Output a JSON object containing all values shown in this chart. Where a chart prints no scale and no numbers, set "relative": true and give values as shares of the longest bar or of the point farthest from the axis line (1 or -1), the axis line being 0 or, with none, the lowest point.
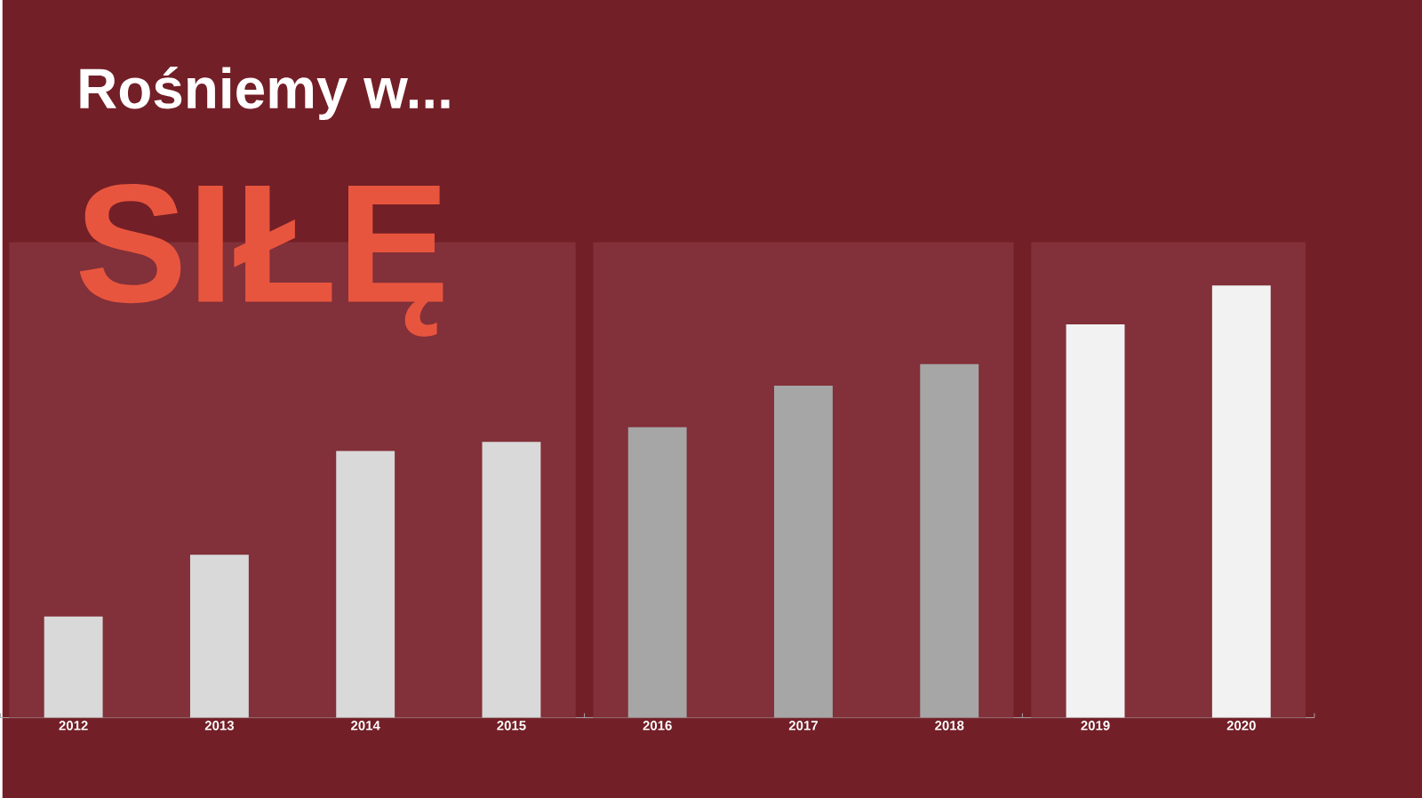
{
  "chart_data": {
    "type": "bar",
    "title": "Rośniemy w...",
    "subtitle": "SIŁĘ",
    "relative": true,
    "categories": [
      "2012",
      "2013",
      "2014",
      "2015",
      "2016",
      "2017",
      "2018",
      "2019",
      "2020"
    ],
    "values": [
      0.234,
      0.377,
      0.617,
      0.638,
      0.672,
      0.768,
      0.818,
      0.91,
      1
    ],
    "colors": [
      "#d9d9d9",
      "#d9d9d9",
      "#d9d9d9",
      "#d9d9d9",
      "#a6a6a6",
      "#a6a6a6",
      "#a6a6a6",
      "#f2f2f2",
      "#f2f2f2"
    ],
    "bands": [
      {
        "axis": "x",
        "from": "2012",
        "to": "2015",
        "color": "#823039"
      },
      {
        "axis": "x",
        "from": "2016",
        "to": "2018",
        "color": "#823039"
      },
      {
        "axis": "x",
        "from": "2019",
        "to": "2020",
        "color": "#823039"
      }
    ]
  }
}
